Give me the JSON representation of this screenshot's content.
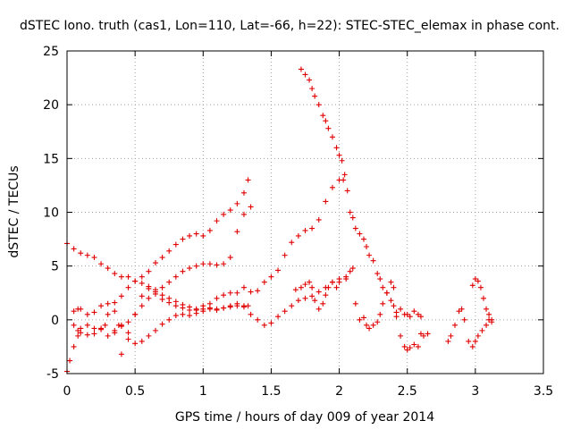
{
  "chart_data": {
    "type": "scatter",
    "title": "dSTEC Iono. truth (cas1, Lon=110, Lat=-66, h=22): STEC-STEC_elemax in phase cont.",
    "xlabel": "GPS time / hours of day 009 of year 2014",
    "ylabel": "dSTEC  / TECUs",
    "xlim": [
      0,
      3.5
    ],
    "ylim": [
      -5,
      25
    ],
    "xticks": [
      "0",
      "0.5",
      "1",
      "1.5",
      "2",
      "2.5",
      "3",
      "3.5"
    ],
    "yticks": [
      "-5",
      "0",
      "5",
      "10",
      "15",
      "20",
      "25"
    ],
    "grid": true,
    "marker": "+",
    "color": "#e00000",
    "series": [
      {
        "x": [
          0.0,
          0.05,
          0.1,
          0.15,
          0.2,
          0.25,
          0.3,
          0.35,
          0.4,
          0.45,
          0.5,
          0.55,
          0.6,
          0.65,
          0.7,
          0.75,
          0.8,
          0.85,
          0.9,
          0.95,
          1.0,
          1.05,
          1.1,
          1.15,
          1.2,
          1.25,
          1.3,
          1.33
        ],
        "y": [
          7.1,
          6.6,
          6.2,
          6.0,
          5.8,
          5.2,
          4.8,
          4.3,
          4.0,
          4.0,
          3.6,
          3.4,
          2.9,
          2.4,
          1.9,
          1.6,
          1.3,
          1.1,
          0.9,
          0.9,
          1.0,
          1.1,
          1.0,
          1.1,
          1.2,
          1.3,
          1.2,
          1.3
        ]
      },
      {
        "x": [
          0.05,
          0.08,
          0.1,
          0.15,
          0.2,
          0.25,
          0.3,
          0.35,
          0.4,
          0.45,
          0.5,
          0.55,
          0.6,
          0.65,
          0.7,
          0.75,
          0.8,
          0.85,
          0.9,
          0.95,
          1.0,
          1.05,
          1.1,
          1.15,
          1.2,
          1.25,
          1.3,
          1.33
        ],
        "y": [
          0.8,
          1.0,
          1.0,
          0.5,
          0.7,
          1.3,
          1.5,
          1.6,
          2.2,
          3.0,
          3.6,
          4.0,
          4.5,
          5.3,
          5.8,
          6.4,
          7.0,
          7.5,
          7.8,
          8.0,
          7.8,
          8.3,
          9.2,
          9.8,
          10.2,
          10.8,
          11.8,
          13.0
        ]
      },
      {
        "x": [
          0.0,
          0.02,
          0.05,
          0.08,
          0.1,
          0.15,
          0.2,
          0.25,
          0.3,
          0.35,
          0.4,
          0.45,
          0.5,
          0.55,
          0.6,
          0.65,
          0.7,
          0.75,
          0.8,
          0.85,
          0.9,
          0.95,
          1.0,
          1.05,
          1.1,
          1.15,
          1.2,
          1.25,
          1.3,
          1.35
        ],
        "y": [
          -4.8,
          -3.8,
          -2.5,
          -1.5,
          -0.8,
          -0.5,
          -0.8,
          -0.9,
          -1.5,
          -1.0,
          -0.6,
          -0.2,
          0.5,
          1.3,
          2.0,
          2.6,
          3.0,
          3.5,
          4.0,
          4.5,
          4.8,
          5.0,
          5.2,
          5.2,
          5.1,
          5.2,
          5.8,
          8.2,
          9.8,
          10.5
        ]
      },
      {
        "x": [
          0.05,
          0.08,
          0.1,
          0.15,
          0.2,
          0.25,
          0.28,
          0.3,
          0.35,
          0.38,
          0.4,
          0.45,
          0.5,
          0.55,
          0.6,
          0.65,
          0.7,
          0.75,
          0.8,
          0.85,
          0.9,
          0.95,
          1.0,
          1.05,
          1.1,
          1.15,
          1.2,
          1.25,
          1.3,
          1.35,
          1.4,
          1.45,
          1.5,
          1.55,
          1.6,
          1.65,
          1.7,
          1.75,
          1.8,
          1.85,
          1.9,
          1.95,
          2.0,
          2.05
        ],
        "y": [
          -0.5,
          -1.0,
          -1.2,
          -1.4,
          -1.3,
          -0.8,
          -0.5,
          0.5,
          0.8,
          -0.5,
          -3.2,
          -1.8,
          0.5,
          2.2,
          3.1,
          2.8,
          2.3,
          2.0,
          1.7,
          1.4,
          1.2,
          1.0,
          1.3,
          1.0,
          0.9,
          1.1,
          1.3,
          1.5,
          1.3,
          0.5,
          0.0,
          -0.5,
          -0.3,
          0.3,
          0.8,
          1.3,
          1.8,
          2.0,
          2.2,
          2.6,
          3.0,
          3.5,
          3.8,
          4.0
        ]
      },
      {
        "x": [
          0.35,
          0.4,
          0.45,
          0.5,
          0.55,
          0.6,
          0.65,
          0.7,
          0.75,
          0.8,
          0.85,
          0.9,
          0.95,
          1.0,
          1.05,
          1.1,
          1.15,
          1.2,
          1.25,
          1.3,
          1.35,
          1.4,
          1.45,
          1.5,
          1.55,
          1.6,
          1.65,
          1.7,
          1.75,
          1.8,
          1.85,
          1.9,
          1.95,
          2.0,
          2.03
        ],
        "y": [
          -1.2,
          -0.5,
          -1.2,
          -2.2,
          -2.0,
          -1.5,
          -1.0,
          -0.4,
          0.0,
          0.4,
          0.5,
          0.4,
          0.6,
          0.8,
          1.5,
          2.0,
          2.3,
          2.5,
          2.5,
          3.0,
          2.6,
          2.7,
          3.5,
          4.0,
          4.6,
          6.0,
          7.2,
          7.8,
          8.3,
          8.5,
          9.3,
          11.0,
          12.3,
          13.0,
          13.0
        ]
      },
      {
        "x": [
          1.72,
          1.75,
          1.78,
          1.8,
          1.82,
          1.85,
          1.88,
          1.9,
          1.92,
          1.95,
          1.98,
          2.0,
          2.02,
          2.04,
          2.06,
          2.08,
          2.1,
          2.12,
          2.15,
          2.18,
          2.2,
          2.22,
          2.25,
          2.28,
          2.3,
          2.32,
          2.35,
          2.38,
          2.4,
          2.42,
          2.45,
          2.48,
          2.5,
          2.52,
          2.55,
          2.58,
          2.6
        ],
        "y": [
          23.3,
          22.8,
          22.3,
          21.5,
          20.8,
          20.0,
          19.0,
          18.5,
          17.8,
          17.0,
          16.0,
          15.3,
          14.8,
          13.5,
          12.0,
          10.0,
          9.5,
          8.5,
          8.0,
          7.5,
          6.8,
          6.0,
          5.5,
          4.3,
          3.8,
          3.0,
          2.5,
          1.8,
          1.3,
          0.7,
          1.0,
          0.5,
          0.5,
          0.3,
          0.8,
          0.5,
          0.3
        ]
      },
      {
        "x": [
          1.68,
          1.72,
          1.75,
          1.78,
          1.8,
          1.82,
          1.85,
          1.88,
          1.9,
          1.92,
          1.95,
          1.98,
          2.0,
          2.05,
          2.08,
          2.1,
          2.12,
          2.15,
          2.18,
          2.2,
          2.22,
          2.25,
          2.28,
          2.3,
          2.32,
          2.35,
          2.38,
          2.4,
          2.42,
          2.45,
          2.48,
          2.5,
          2.52,
          2.55,
          2.58,
          2.6,
          2.62,
          2.65
        ],
        "y": [
          2.8,
          3.0,
          3.3,
          3.5,
          3.0,
          1.8,
          1.0,
          1.5,
          2.3,
          3.0,
          3.5,
          3.0,
          3.5,
          3.8,
          4.5,
          4.8,
          1.5,
          0.0,
          0.2,
          -0.5,
          -0.8,
          -0.5,
          -0.2,
          0.5,
          1.5,
          2.5,
          3.5,
          3.0,
          0.3,
          -1.5,
          -2.5,
          -2.8,
          -2.6,
          -2.3,
          -2.5,
          -1.3,
          -1.5,
          -1.3
        ]
      },
      {
        "x": [
          2.8,
          2.82,
          2.85,
          2.88,
          2.9,
          2.92,
          2.95,
          2.98,
          3.0,
          3.02,
          3.05,
          3.08,
          3.1,
          3.12
        ],
        "y": [
          -2.0,
          -1.5,
          -0.5,
          0.8,
          1.0,
          0.0,
          -2.0,
          -2.5,
          -2.0,
          -1.5,
          -1.0,
          -0.5,
          0.0,
          -0.2
        ]
      },
      {
        "x": [
          2.98,
          3.0,
          3.02,
          3.04,
          3.06,
          3.08,
          3.1,
          3.12
        ],
        "y": [
          3.2,
          3.8,
          3.6,
          3.0,
          2.0,
          1.0,
          0.5,
          0.0
        ]
      }
    ]
  }
}
